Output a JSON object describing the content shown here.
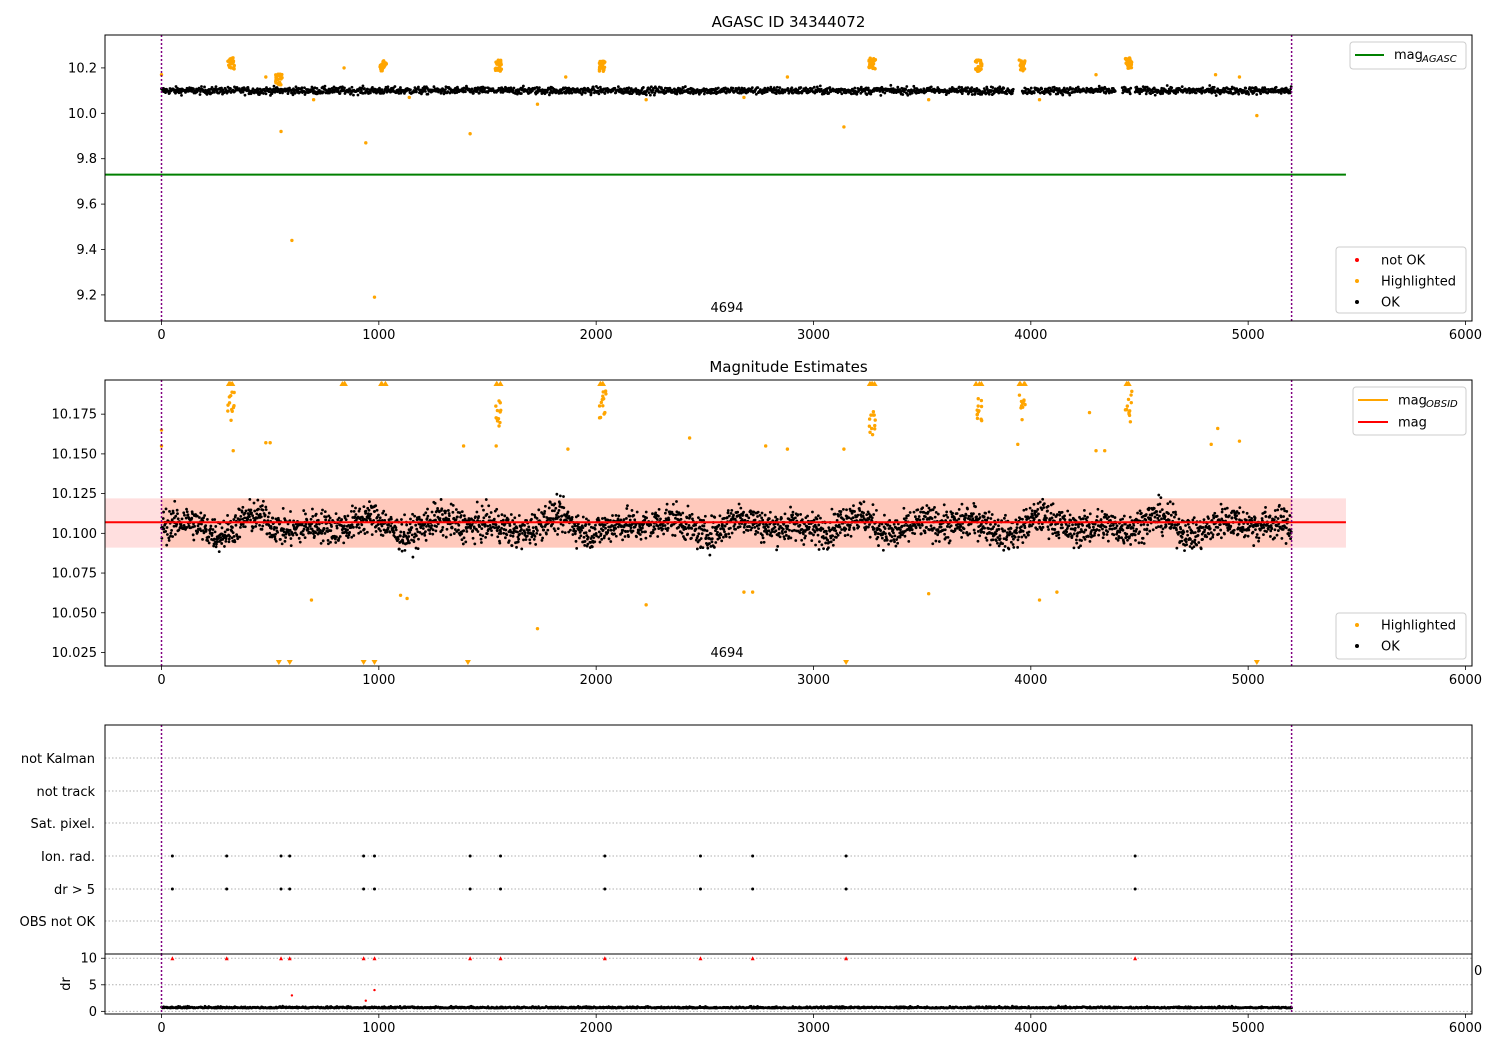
{
  "chart_data": [
    {
      "type": "scatter",
      "title": "AGASC ID 34344072",
      "xlim": [
        -260,
        6030
      ],
      "ylim": [
        9.085,
        10.345
      ],
      "xticks": [
        0,
        1000,
        2000,
        3000,
        4000,
        5000,
        6000
      ],
      "yticks": [
        9.2,
        9.4,
        9.6,
        9.8,
        10.0,
        10.2
      ],
      "ytick_labels": [
        "9.2",
        "9.4",
        "9.6",
        "9.8",
        "10.0",
        "10.2"
      ],
      "annotation": "4694",
      "vlines": [
        0,
        5200
      ],
      "hlines": [
        {
          "name": "mag_AGASC",
          "y": 9.73,
          "x": [
            -260,
            5450
          ],
          "color": "#008000"
        }
      ],
      "ok_band": {
        "center": 10.1,
        "spread": 0.03,
        "x_range": [
          0,
          5200
        ],
        "gaps": [
          [
            3920,
            3960
          ],
          [
            4390,
            4420
          ],
          [
            4460,
            4480
          ]
        ]
      },
      "highlight_clusters": [
        [
          320,
          10.22
        ],
        [
          540,
          10.15
        ],
        [
          1020,
          10.21
        ],
        [
          1550,
          10.21
        ],
        [
          2030,
          10.21
        ],
        [
          3270,
          10.22
        ],
        [
          3760,
          10.21
        ],
        [
          3960,
          10.21
        ],
        [
          4450,
          10.22
        ]
      ],
      "highlighted_points": [
        [
          0,
          10.17
        ],
        [
          480,
          10.16
        ],
        [
          840,
          10.2
        ],
        [
          700,
          10.06
        ],
        [
          1140,
          10.07
        ],
        [
          1420,
          9.91
        ],
        [
          1730,
          10.04
        ],
        [
          1860,
          10.16
        ],
        [
          2230,
          10.06
        ],
        [
          2680,
          10.07
        ],
        [
          2880,
          10.16
        ],
        [
          3140,
          9.94
        ],
        [
          3530,
          10.06
        ],
        [
          4040,
          10.06
        ],
        [
          4300,
          10.17
        ],
        [
          4850,
          10.17
        ],
        [
          4960,
          10.16
        ],
        [
          5040,
          9.99
        ],
        [
          550,
          9.92
        ],
        [
          600,
          9.44
        ],
        [
          940,
          9.87
        ],
        [
          980,
          9.19
        ]
      ],
      "legend_top": [
        {
          "label": "mag",
          "sub": "AGASC",
          "color": "#008000"
        }
      ],
      "legend_bottom": [
        {
          "label": "not OK",
          "color": "#ff0000"
        },
        {
          "label": "Highlighted",
          "color": "#ffa500"
        },
        {
          "label": "OK",
          "color": "#000000"
        }
      ]
    },
    {
      "type": "scatter",
      "title": "Magnitude Estimates",
      "xlim": [
        -260,
        6030
      ],
      "ylim": [
        10.0165,
        10.1965
      ],
      "xticks": [
        0,
        1000,
        2000,
        3000,
        4000,
        5000,
        6000
      ],
      "yticks": [
        10.025,
        10.05,
        10.075,
        10.1,
        10.125,
        10.15,
        10.175
      ],
      "ytick_labels": [
        "10.025",
        "10.050",
        "10.075",
        "10.100",
        "10.125",
        "10.150",
        "10.175"
      ],
      "annotation": "4694",
      "vlines": [
        0,
        5200
      ],
      "mag": 10.107,
      "mag_band": [
        10.091,
        10.122
      ],
      "band_x": [
        -260,
        5450
      ],
      "ok_band": {
        "center": 10.105,
        "spread": 0.014,
        "x_range": [
          0,
          5200
        ]
      },
      "highlight_clusters": [
        [
          320,
          10.19
        ],
        [
          1550,
          10.185
        ],
        [
          2030,
          10.19
        ],
        [
          3270,
          10.18
        ],
        [
          3760,
          10.19
        ],
        [
          3960,
          10.19
        ],
        [
          4450,
          10.19
        ]
      ],
      "highlighted_points": [
        [
          0,
          10.165
        ],
        [
          0,
          10.155
        ],
        [
          330,
          10.152
        ],
        [
          480,
          10.157
        ],
        [
          500,
          10.157
        ],
        [
          690,
          10.058
        ],
        [
          1100,
          10.061
        ],
        [
          1130,
          10.059
        ],
        [
          1390,
          10.155
        ],
        [
          1540,
          10.155
        ],
        [
          1730,
          10.04
        ],
        [
          1870,
          10.153
        ],
        [
          2040,
          10.176
        ],
        [
          2230,
          10.055
        ],
        [
          2430,
          10.16
        ],
        [
          2680,
          10.063
        ],
        [
          2720,
          10.063
        ],
        [
          2780,
          10.155
        ],
        [
          2880,
          10.153
        ],
        [
          3140,
          10.153
        ],
        [
          3530,
          10.062
        ],
        [
          3940,
          10.156
        ],
        [
          4040,
          10.058
        ],
        [
          4120,
          10.063
        ],
        [
          4270,
          10.176
        ],
        [
          4300,
          10.152
        ],
        [
          4340,
          10.152
        ],
        [
          4830,
          10.156
        ],
        [
          4860,
          10.166
        ],
        [
          4960,
          10.158
        ]
      ],
      "top_clipped_x": [
        320,
        840,
        1020,
        1550,
        2030,
        3270,
        3760,
        3960,
        4450
      ],
      "bottom_clipped_x": [
        540,
        590,
        930,
        980,
        1410,
        3150,
        5040
      ],
      "legend_top": [
        {
          "label": "mag",
          "sub": "OBSID",
          "color": "#ffa500"
        },
        {
          "label": "mag",
          "sub": "",
          "color": "#ff0000"
        }
      ],
      "legend_bottom": [
        {
          "label": "Highlighted",
          "color": "#ffa500"
        },
        {
          "label": "OK",
          "color": "#000000"
        }
      ]
    },
    {
      "type": "scatter",
      "title": "",
      "xlim": [
        -260,
        6030
      ],
      "vlines": [
        0,
        5200
      ],
      "flag_rows": [
        "not Kalman",
        "not track",
        "Sat. pixel.",
        "Ion. rad.",
        "dr > 5",
        "OBS not OK"
      ],
      "flag_events_x": [
        50,
        300,
        550,
        590,
        930,
        980,
        1420,
        1560,
        2040,
        2480,
        2720,
        3150,
        4480
      ],
      "flagged_rows": [
        "Ion. rad.",
        "dr > 5"
      ]
    },
    {
      "type": "scatter",
      "title": "",
      "ylabel": "dr",
      "xlim": [
        -260,
        6030
      ],
      "ylim": [
        -0.5,
        10.8
      ],
      "xticks": [
        0,
        1000,
        2000,
        3000,
        4000,
        5000,
        6000
      ],
      "yticks": [
        0,
        5,
        10
      ],
      "ytick_labels": [
        "0",
        "5",
        "10"
      ],
      "vlines": [
        0,
        5200
      ],
      "dr_baseline": {
        "center": 0.6,
        "spread": 0.3,
        "x_range": [
          0,
          5200
        ]
      },
      "clipped_x": [
        50,
        300,
        550,
        590,
        930,
        980,
        1420,
        1560,
        2040,
        2480,
        2720,
        3150,
        4480
      ],
      "extra_points": [
        [
          600,
          3.0
        ],
        [
          940,
          2.0
        ],
        [
          980,
          4.0
        ]
      ],
      "edge_tick_label": "0"
    }
  ]
}
